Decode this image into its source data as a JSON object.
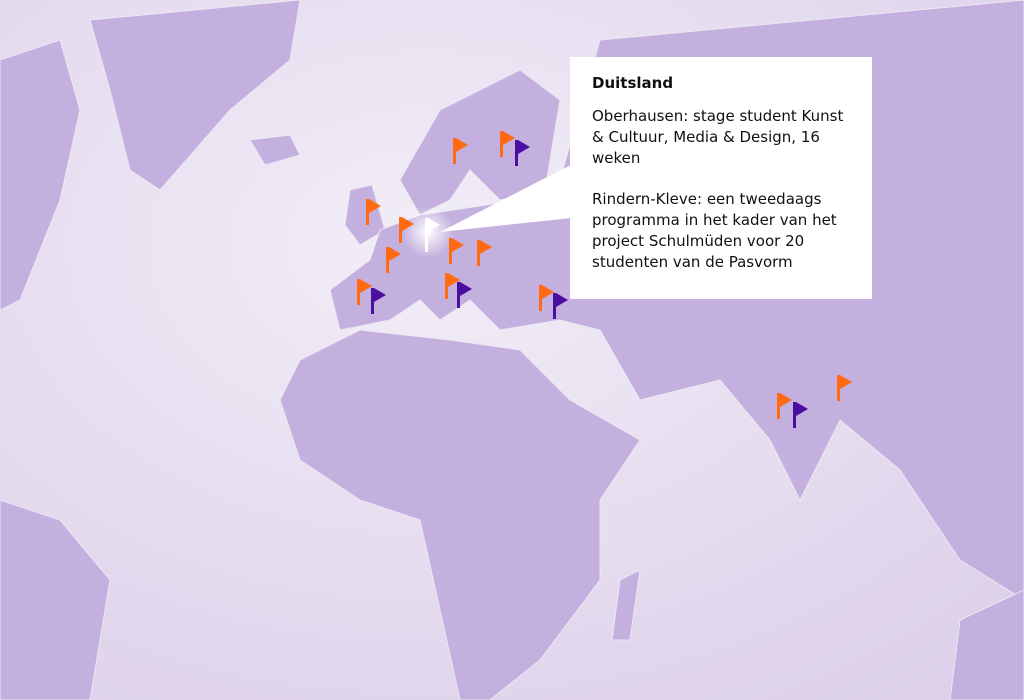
{
  "map": {
    "land_color": "#c3b0de",
    "sea_color": "#e6def0",
    "border_color": "#ece6f4",
    "flags": [
      {
        "country": "Zweden",
        "color": "#ff6a13",
        "type": "orange"
      },
      {
        "country": "Finland",
        "color": "#ff6a13",
        "type": "orange"
      },
      {
        "country": "Finland",
        "color": "#4b0ea0",
        "type": "purple"
      },
      {
        "country": "Verenigd Koninkrijk",
        "color": "#ff6a13",
        "type": "orange"
      },
      {
        "country": "Nederland",
        "color": "#ff6a13",
        "type": "orange"
      },
      {
        "country": "Duitsland",
        "color": "#ffffff",
        "type": "selected"
      },
      {
        "country": "Frankrijk",
        "color": "#ff6a13",
        "type": "orange"
      },
      {
        "country": "Polen",
        "color": "#ff6a13",
        "type": "orange"
      },
      {
        "country": "Oost-Europa",
        "color": "#ff6a13",
        "type": "orange"
      },
      {
        "country": "Spanje",
        "color": "#ff6a13",
        "type": "orange"
      },
      {
        "country": "Spanje",
        "color": "#4b0ea0",
        "type": "purple"
      },
      {
        "country": "Italië",
        "color": "#ff6a13",
        "type": "orange"
      },
      {
        "country": "Italië",
        "color": "#4b0ea0",
        "type": "purple"
      },
      {
        "country": "Turkije",
        "color": "#ff6a13",
        "type": "orange"
      },
      {
        "country": "Turkije",
        "color": "#4b0ea0",
        "type": "purple"
      },
      {
        "country": "India",
        "color": "#ff6a13",
        "type": "orange"
      },
      {
        "country": "India",
        "color": "#4b0ea0",
        "type": "purple"
      },
      {
        "country": "Bangladesh",
        "color": "#ff6a13",
        "type": "orange"
      }
    ]
  },
  "popup": {
    "title": "Duitsland",
    "entries": [
      "Oberhausen: stage student Kunst & Cultuur, Media & Design, 16 weken",
      "Rindern-Kleve: een tweedaags programma in het kader van het project Schulmüden voor 20 studenten van de Pasvorm"
    ]
  }
}
